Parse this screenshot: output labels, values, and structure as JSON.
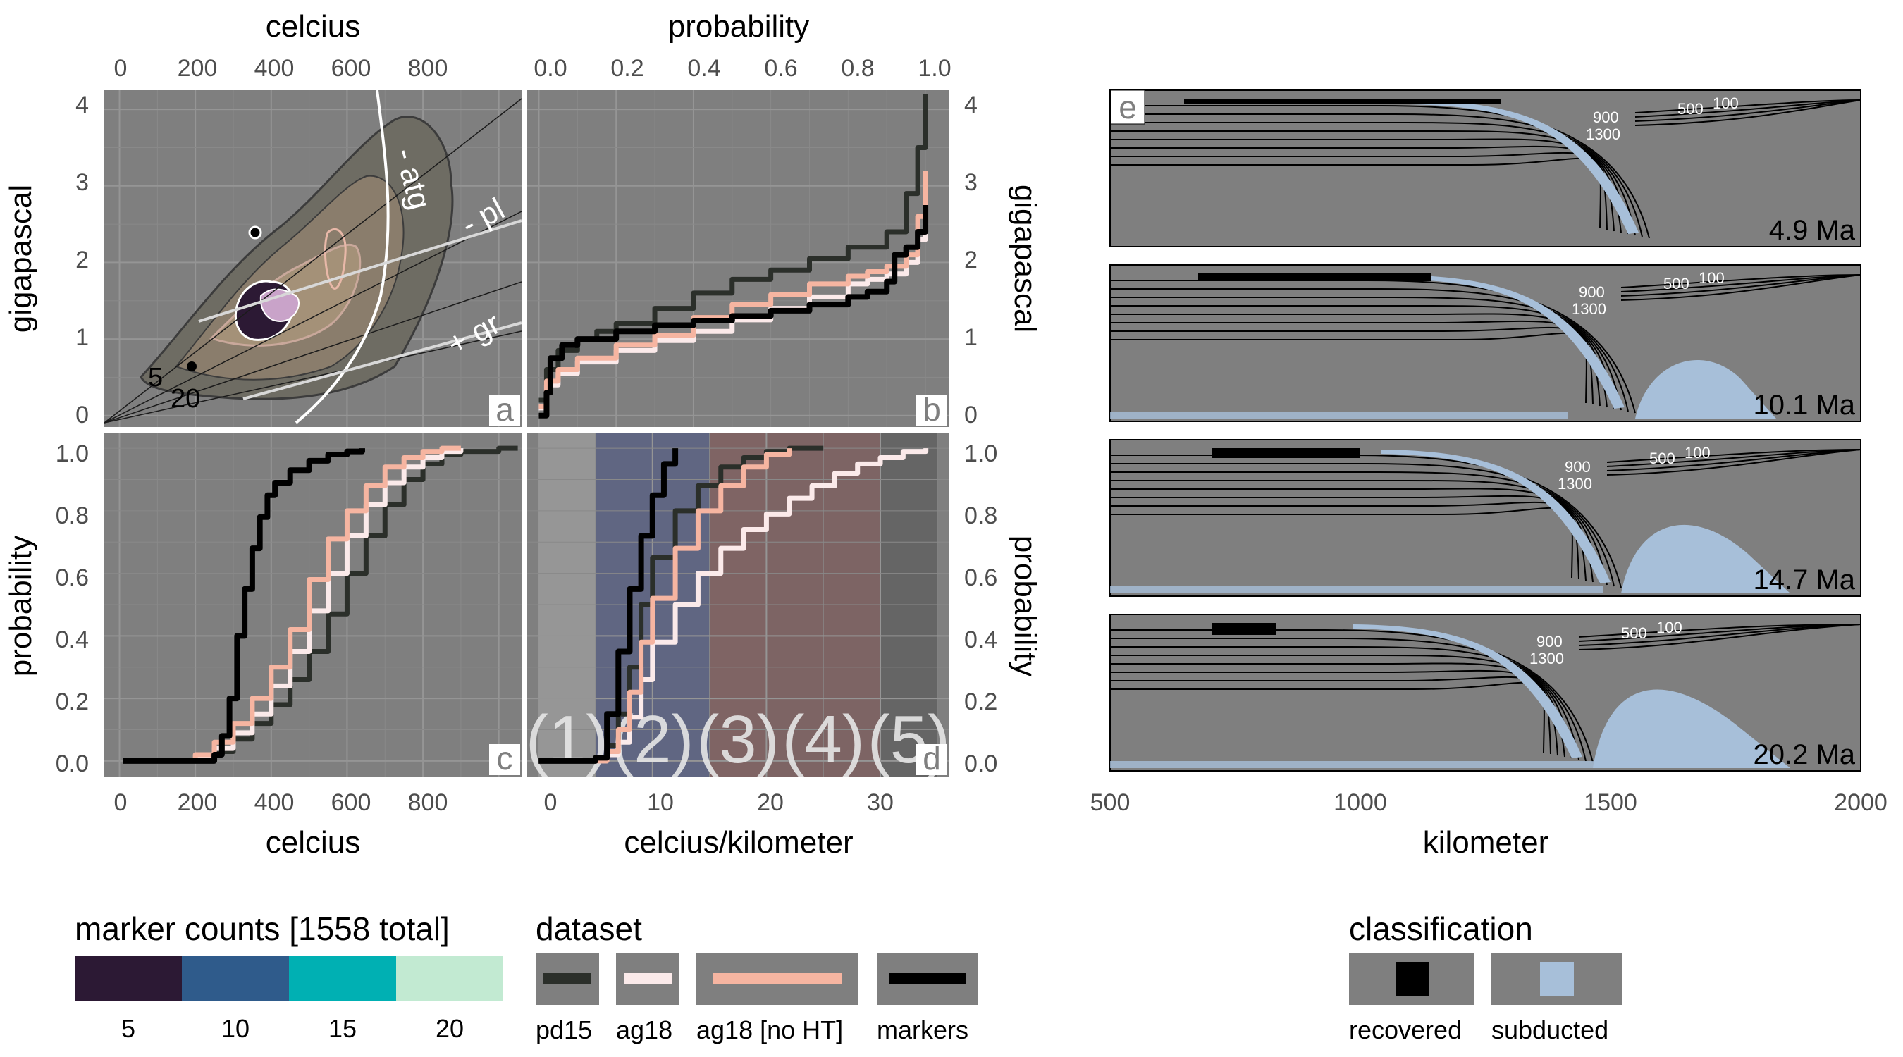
{
  "colors": {
    "panel_bg": "#7f7f7f",
    "grid": "#8f8f8f",
    "pd15": "#2b2f2a",
    "ag18": "#fbeaea",
    "ag18_noHT": "#f6b5a1",
    "markers": "#000000",
    "recovered": "#000000",
    "subducted": "#a7bfd9",
    "count_scale": [
      "#2c1934",
      "#2f5b8b",
      "#00b0b3",
      "#c2ead2"
    ],
    "regime_bands": [
      "#9a9a9a",
      "#5a6283",
      "#7f5f5f",
      "#7d5f5f",
      "#606060"
    ]
  },
  "panels": {
    "a": {
      "tag": "a",
      "top_axis_title": "celcius",
      "left_axis_title": "gigapascal",
      "bottom_axis_title": "celcius",
      "top_ticks": [
        "0",
        "200",
        "400",
        "600",
        "800"
      ],
      "left_ticks": [
        "0",
        "1",
        "2",
        "3",
        "4"
      ],
      "reaction_labels": [
        "- atg",
        "- pl",
        "+ gr"
      ],
      "gradient_labels": [
        "5",
        "20"
      ]
    },
    "b": {
      "tag": "b",
      "top_axis_title": "probability",
      "right_axis_title": "gigapascal",
      "top_ticks": [
        "0.0",
        "0.2",
        "0.4",
        "0.6",
        "0.8",
        "1.0"
      ],
      "right_ticks": [
        "0",
        "1",
        "2",
        "3",
        "4"
      ]
    },
    "c": {
      "tag": "c",
      "left_axis_title": "probability",
      "bottom_axis_title": "celcius",
      "left_ticks": [
        "0.0",
        "0.2",
        "0.4",
        "0.6",
        "0.8",
        "1.0"
      ],
      "bottom_ticks": [
        "0",
        "200",
        "400",
        "600",
        "800"
      ]
    },
    "d": {
      "tag": "d",
      "right_axis_title": "probability",
      "bottom_axis_title": "celcius/kilometer",
      "right_ticks": [
        "0.0",
        "0.2",
        "0.4",
        "0.6",
        "0.8",
        "1.0"
      ],
      "bottom_ticks": [
        "0",
        "10",
        "20",
        "30"
      ],
      "regime_labels": [
        "(1)",
        "(2)",
        "(3)",
        "(4)",
        "(5)"
      ]
    },
    "e": {
      "tag": "e",
      "bottom_axis_title": "kilometer",
      "bottom_ticks": [
        "500",
        "1000",
        "1500",
        "2000"
      ],
      "ages": [
        "4.9 Ma",
        "10.1 Ma",
        "14.7 Ma",
        "20.2 Ma"
      ],
      "isotherm_labels": [
        "100",
        "500",
        "900",
        "1300"
      ]
    }
  },
  "legends": {
    "counts": {
      "title": "marker counts [1558 total]",
      "labels": [
        "5",
        "10",
        "15",
        "20"
      ]
    },
    "dataset": {
      "title": "dataset",
      "labels": [
        "pd15",
        "ag18",
        "ag18 [no HT]",
        "markers"
      ]
    },
    "classification": {
      "title": "classification",
      "labels": [
        "recovered",
        "subducted"
      ]
    }
  },
  "chart_data": [
    {
      "panel": "a",
      "type": "scatter",
      "xlabel": "celcius",
      "ylabel": "gigapascal",
      "xlim": [
        -40,
        1060
      ],
      "ylim": [
        -0.15,
        4.25
      ],
      "reaction_boundaries": [
        "- atg",
        "- pl",
        "+ gr"
      ],
      "gradient_lines_c_per_km": [
        5,
        20
      ],
      "grid": true
    },
    {
      "panel": "b",
      "type": "line",
      "xlabel": "probability",
      "ylabel": "gigapascal",
      "xlim": [
        -0.03,
        1.06
      ],
      "ylim": [
        -0.15,
        4.25
      ],
      "series": [
        {
          "name": "pd15",
          "x": [
            0.0,
            0.02,
            0.05,
            0.1,
            0.15,
            0.2,
            0.3,
            0.4,
            0.5,
            0.6,
            0.7,
            0.8,
            0.9,
            0.95,
            0.98,
            1.0
          ],
          "y": [
            0.2,
            0.6,
            0.85,
            1.0,
            1.1,
            1.2,
            1.4,
            1.6,
            1.78,
            1.9,
            2.05,
            2.2,
            2.4,
            2.9,
            3.5,
            4.2
          ]
        },
        {
          "name": "ag18",
          "x": [
            0.0,
            0.02,
            0.05,
            0.1,
            0.2,
            0.3,
            0.4,
            0.5,
            0.6,
            0.7,
            0.8,
            0.85,
            0.9,
            0.95,
            0.98,
            1.0
          ],
          "y": [
            0.1,
            0.4,
            0.55,
            0.7,
            0.85,
            0.98,
            1.1,
            1.25,
            1.4,
            1.55,
            1.72,
            1.78,
            1.85,
            2.0,
            2.3,
            2.6
          ]
        },
        {
          "name": "ag18 [no HT]",
          "x": [
            0.0,
            0.02,
            0.05,
            0.1,
            0.2,
            0.3,
            0.4,
            0.5,
            0.6,
            0.7,
            0.8,
            0.85,
            0.9,
            0.95,
            0.98,
            1.0
          ],
          "y": [
            0.12,
            0.45,
            0.6,
            0.75,
            0.92,
            1.05,
            1.28,
            1.45,
            1.58,
            1.72,
            1.82,
            1.88,
            1.95,
            2.1,
            2.6,
            3.2
          ]
        },
        {
          "name": "markers",
          "x": [
            0.0,
            0.02,
            0.03,
            0.06,
            0.1,
            0.2,
            0.3,
            0.4,
            0.5,
            0.6,
            0.7,
            0.8,
            0.85,
            0.9,
            0.92,
            0.95,
            0.98,
            1.0
          ],
          "y": [
            0.0,
            0.3,
            0.75,
            0.92,
            1.0,
            1.1,
            1.18,
            1.24,
            1.3,
            1.37,
            1.45,
            1.55,
            1.62,
            1.75,
            2.1,
            2.2,
            2.4,
            2.75
          ]
        }
      ],
      "grid": true
    },
    {
      "panel": "c",
      "type": "line",
      "xlabel": "celcius",
      "ylabel": "probability",
      "xlim": [
        -40,
        1060
      ],
      "ylim": [
        -0.05,
        1.05
      ],
      "series": [
        {
          "name": "pd15",
          "x": [
            10,
            150,
            200,
            250,
            300,
            350,
            400,
            450,
            500,
            550,
            600,
            650,
            700,
            750,
            800,
            850,
            900,
            1000,
            1050
          ],
          "y": [
            0.0,
            0.0,
            0.01,
            0.03,
            0.07,
            0.12,
            0.18,
            0.26,
            0.35,
            0.47,
            0.6,
            0.72,
            0.82,
            0.9,
            0.95,
            0.98,
            0.99,
            1.0,
            1.0
          ]
        },
        {
          "name": "ag18",
          "x": [
            10,
            150,
            200,
            250,
            300,
            350,
            400,
            450,
            500,
            550,
            600,
            650,
            700,
            750,
            800,
            850,
            900
          ],
          "y": [
            0.0,
            0.0,
            0.01,
            0.04,
            0.09,
            0.15,
            0.24,
            0.35,
            0.48,
            0.6,
            0.72,
            0.82,
            0.89,
            0.94,
            0.97,
            0.99,
            1.0
          ]
        },
        {
          "name": "ag18 [no HT]",
          "x": [
            10,
            150,
            200,
            250,
            300,
            350,
            400,
            450,
            500,
            550,
            600,
            650,
            700,
            750,
            800,
            850,
            900
          ],
          "y": [
            0.0,
            0.0,
            0.02,
            0.06,
            0.12,
            0.2,
            0.3,
            0.42,
            0.58,
            0.71,
            0.8,
            0.88,
            0.94,
            0.97,
            0.99,
            1.0,
            1.0
          ]
        },
        {
          "name": "markers",
          "x": [
            10,
            150,
            250,
            270,
            290,
            310,
            330,
            350,
            370,
            390,
            410,
            450,
            500,
            550,
            600,
            640
          ],
          "y": [
            0.0,
            0.0,
            0.02,
            0.08,
            0.2,
            0.4,
            0.55,
            0.68,
            0.78,
            0.85,
            0.89,
            0.93,
            0.96,
            0.98,
            0.99,
            1.0
          ]
        }
      ],
      "grid": true
    },
    {
      "panel": "d",
      "type": "line",
      "xlabel": "celcius/kilometer",
      "ylabel": "probability",
      "xlim": [
        -1,
        36
      ],
      "ylim": [
        -0.05,
        1.05
      ],
      "regimes": [
        {
          "label": "(1)",
          "x_range": [
            0,
            5
          ]
        },
        {
          "label": "(2)",
          "x_range": [
            5,
            15
          ]
        },
        {
          "label": "(3)",
          "x_range": [
            15,
            20
          ]
        },
        {
          "label": "(4)",
          "x_range": [
            20,
            30
          ]
        },
        {
          "label": "(5)",
          "x_range": [
            30,
            35
          ]
        }
      ],
      "series": [
        {
          "name": "pd15",
          "x": [
            5,
            6,
            7,
            8,
            9,
            10,
            12,
            14,
            16,
            18,
            20,
            22,
            25
          ],
          "y": [
            0.0,
            0.05,
            0.15,
            0.3,
            0.5,
            0.65,
            0.8,
            0.88,
            0.94,
            0.97,
            0.99,
            1.0,
            1.0
          ]
        },
        {
          "name": "ag18",
          "x": [
            5,
            6,
            7,
            8,
            9,
            10,
            12,
            14,
            16,
            18,
            20,
            22,
            24,
            26,
            28,
            30,
            32,
            34
          ],
          "y": [
            0.0,
            0.02,
            0.06,
            0.14,
            0.26,
            0.38,
            0.5,
            0.6,
            0.68,
            0.74,
            0.79,
            0.84,
            0.88,
            0.92,
            0.95,
            0.97,
            0.99,
            1.0
          ]
        },
        {
          "name": "ag18 [no HT]",
          "x": [
            5,
            6,
            7,
            8,
            9,
            10,
            12,
            14,
            16,
            18,
            20,
            22
          ],
          "y": [
            0.0,
            0.03,
            0.1,
            0.22,
            0.38,
            0.52,
            0.68,
            0.8,
            0.88,
            0.94,
            0.98,
            1.0
          ]
        },
        {
          "name": "markers",
          "x": [
            0,
            3,
            5,
            6,
            7,
            8,
            9,
            10,
            11,
            12
          ],
          "y": [
            0.0,
            0.0,
            0.01,
            0.15,
            0.35,
            0.55,
            0.72,
            0.85,
            0.95,
            1.0
          ]
        }
      ],
      "grid": true
    },
    {
      "panel": "e",
      "type": "heatmap",
      "xlabel": "kilometer",
      "xlim": [
        500,
        2000
      ],
      "snapshots": [
        "4.9 Ma",
        "10.1 Ma",
        "14.7 Ma",
        "20.2 Ma"
      ],
      "isotherms_c": [
        100,
        500,
        900,
        1300
      ],
      "classes": [
        "recovered",
        "subducted"
      ]
    }
  ]
}
